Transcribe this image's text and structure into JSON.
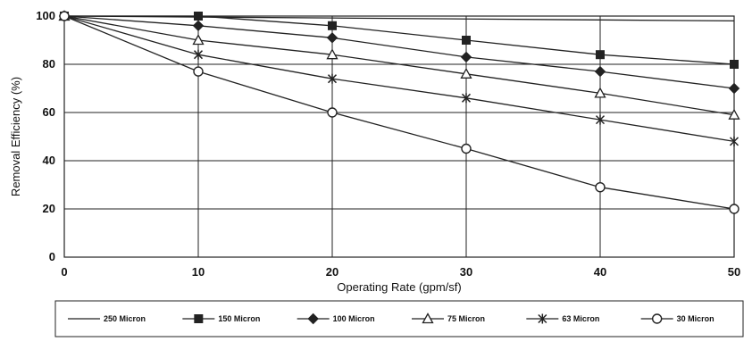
{
  "chart_data": {
    "type": "line",
    "title": "",
    "xlabel": "Operating Rate (gpm/sf)",
    "ylabel": "Removal Efficiency (%)",
    "x": [
      0,
      10,
      20,
      30,
      40,
      50
    ],
    "xlim": [
      0,
      50
    ],
    "ylim": [
      0,
      100
    ],
    "xticks": [
      "0",
      "10",
      "20",
      "30",
      "40",
      "50"
    ],
    "yticks": [
      "0",
      "20",
      "40",
      "60",
      "80",
      "100"
    ],
    "grid": true,
    "legend_position": "bottom",
    "line_color": "#222222",
    "series": [
      {
        "name": "250 Micron",
        "marker": "none",
        "values": [
          100,
          99.6,
          99.2,
          98.8,
          98.4,
          98
        ]
      },
      {
        "name": "150 Micron",
        "marker": "square",
        "values": [
          100,
          100,
          96,
          90,
          84,
          80
        ]
      },
      {
        "name": "100 Micron",
        "marker": "diamond",
        "values": [
          100,
          96,
          91,
          83,
          77,
          70
        ]
      },
      {
        "name": "75 Micron",
        "marker": "triangle",
        "values": [
          100,
          90,
          84,
          76,
          68,
          59
        ]
      },
      {
        "name": "63 Micron",
        "marker": "star",
        "values": [
          100,
          84,
          74,
          66,
          57,
          48
        ]
      },
      {
        "name": "30 Micron",
        "marker": "circle",
        "values": [
          100,
          77,
          60,
          45,
          29,
          20
        ]
      }
    ]
  }
}
